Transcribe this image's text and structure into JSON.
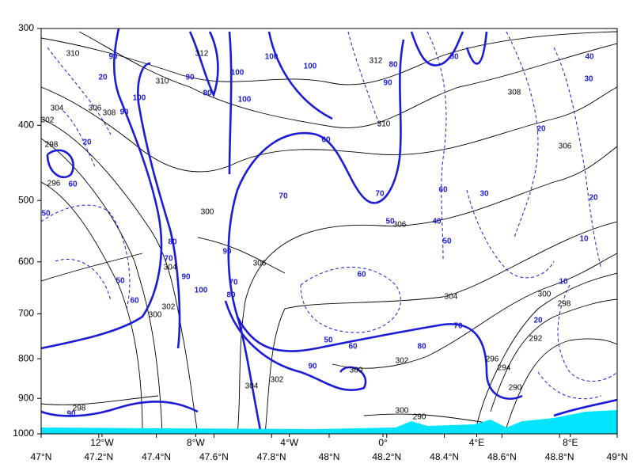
{
  "chart_data": {
    "type": "contour",
    "ylim": [
      1000,
      300
    ],
    "log_y": true,
    "yticks": [
      300,
      400,
      500,
      600,
      700,
      800,
      900,
      1000
    ],
    "xlim": [
      47,
      49
    ],
    "xticks": [
      {
        "value": 47,
        "label": "47°N"
      },
      {
        "value": 47.2,
        "label": "47.2°N"
      },
      {
        "value": 47.4,
        "label": "47.4°N"
      },
      {
        "value": 47.6,
        "label": "47.6°N"
      },
      {
        "value": 47.8,
        "label": "47.8°N"
      },
      {
        "value": 48,
        "label": "48°N"
      },
      {
        "value": 48.2,
        "label": "48.2°N"
      },
      {
        "value": 48.4,
        "label": "48.4°N"
      },
      {
        "value": 48.6,
        "label": "48.6°N"
      },
      {
        "value": 48.8,
        "label": "48.8°N"
      },
      {
        "value": 49,
        "label": "49°N"
      }
    ],
    "x2lim": [
      -14.6,
      10.0
    ],
    "x2ticks": [
      {
        "value": -12,
        "label": "12°W"
      },
      {
        "value": -8,
        "label": "8°W"
      },
      {
        "value": -4,
        "label": "4°W"
      },
      {
        "value": 0,
        "label": "0°"
      },
      {
        "value": 4,
        "label": "4°E"
      },
      {
        "value": 8,
        "label": "8°E"
      }
    ],
    "temperature_color": "#000000",
    "humidity_color": "#1c1cd6",
    "terrain_color": "#00e5ff",
    "temperature_labels": [
      310,
      312,
      310,
      312,
      304,
      306,
      308,
      302,
      298,
      296,
      308,
      310,
      306,
      306,
      300,
      306,
      304,
      302,
      300,
      304,
      300,
      298,
      292,
      296,
      294,
      290,
      300,
      302,
      302,
      304,
      298,
      300,
      290
    ],
    "humidity_labels": [
      90,
      20,
      90,
      100,
      100,
      80,
      90,
      80,
      80,
      100,
      100,
      100,
      90,
      20,
      20,
      40,
      30,
      60,
      20,
      30,
      60,
      70,
      70,
      40,
      50,
      50,
      60,
      50,
      60,
      20,
      10,
      10,
      90,
      70,
      80,
      100,
      80,
      90,
      70,
      50,
      60,
      90,
      80,
      70,
      60,
      50,
      90
    ]
  }
}
